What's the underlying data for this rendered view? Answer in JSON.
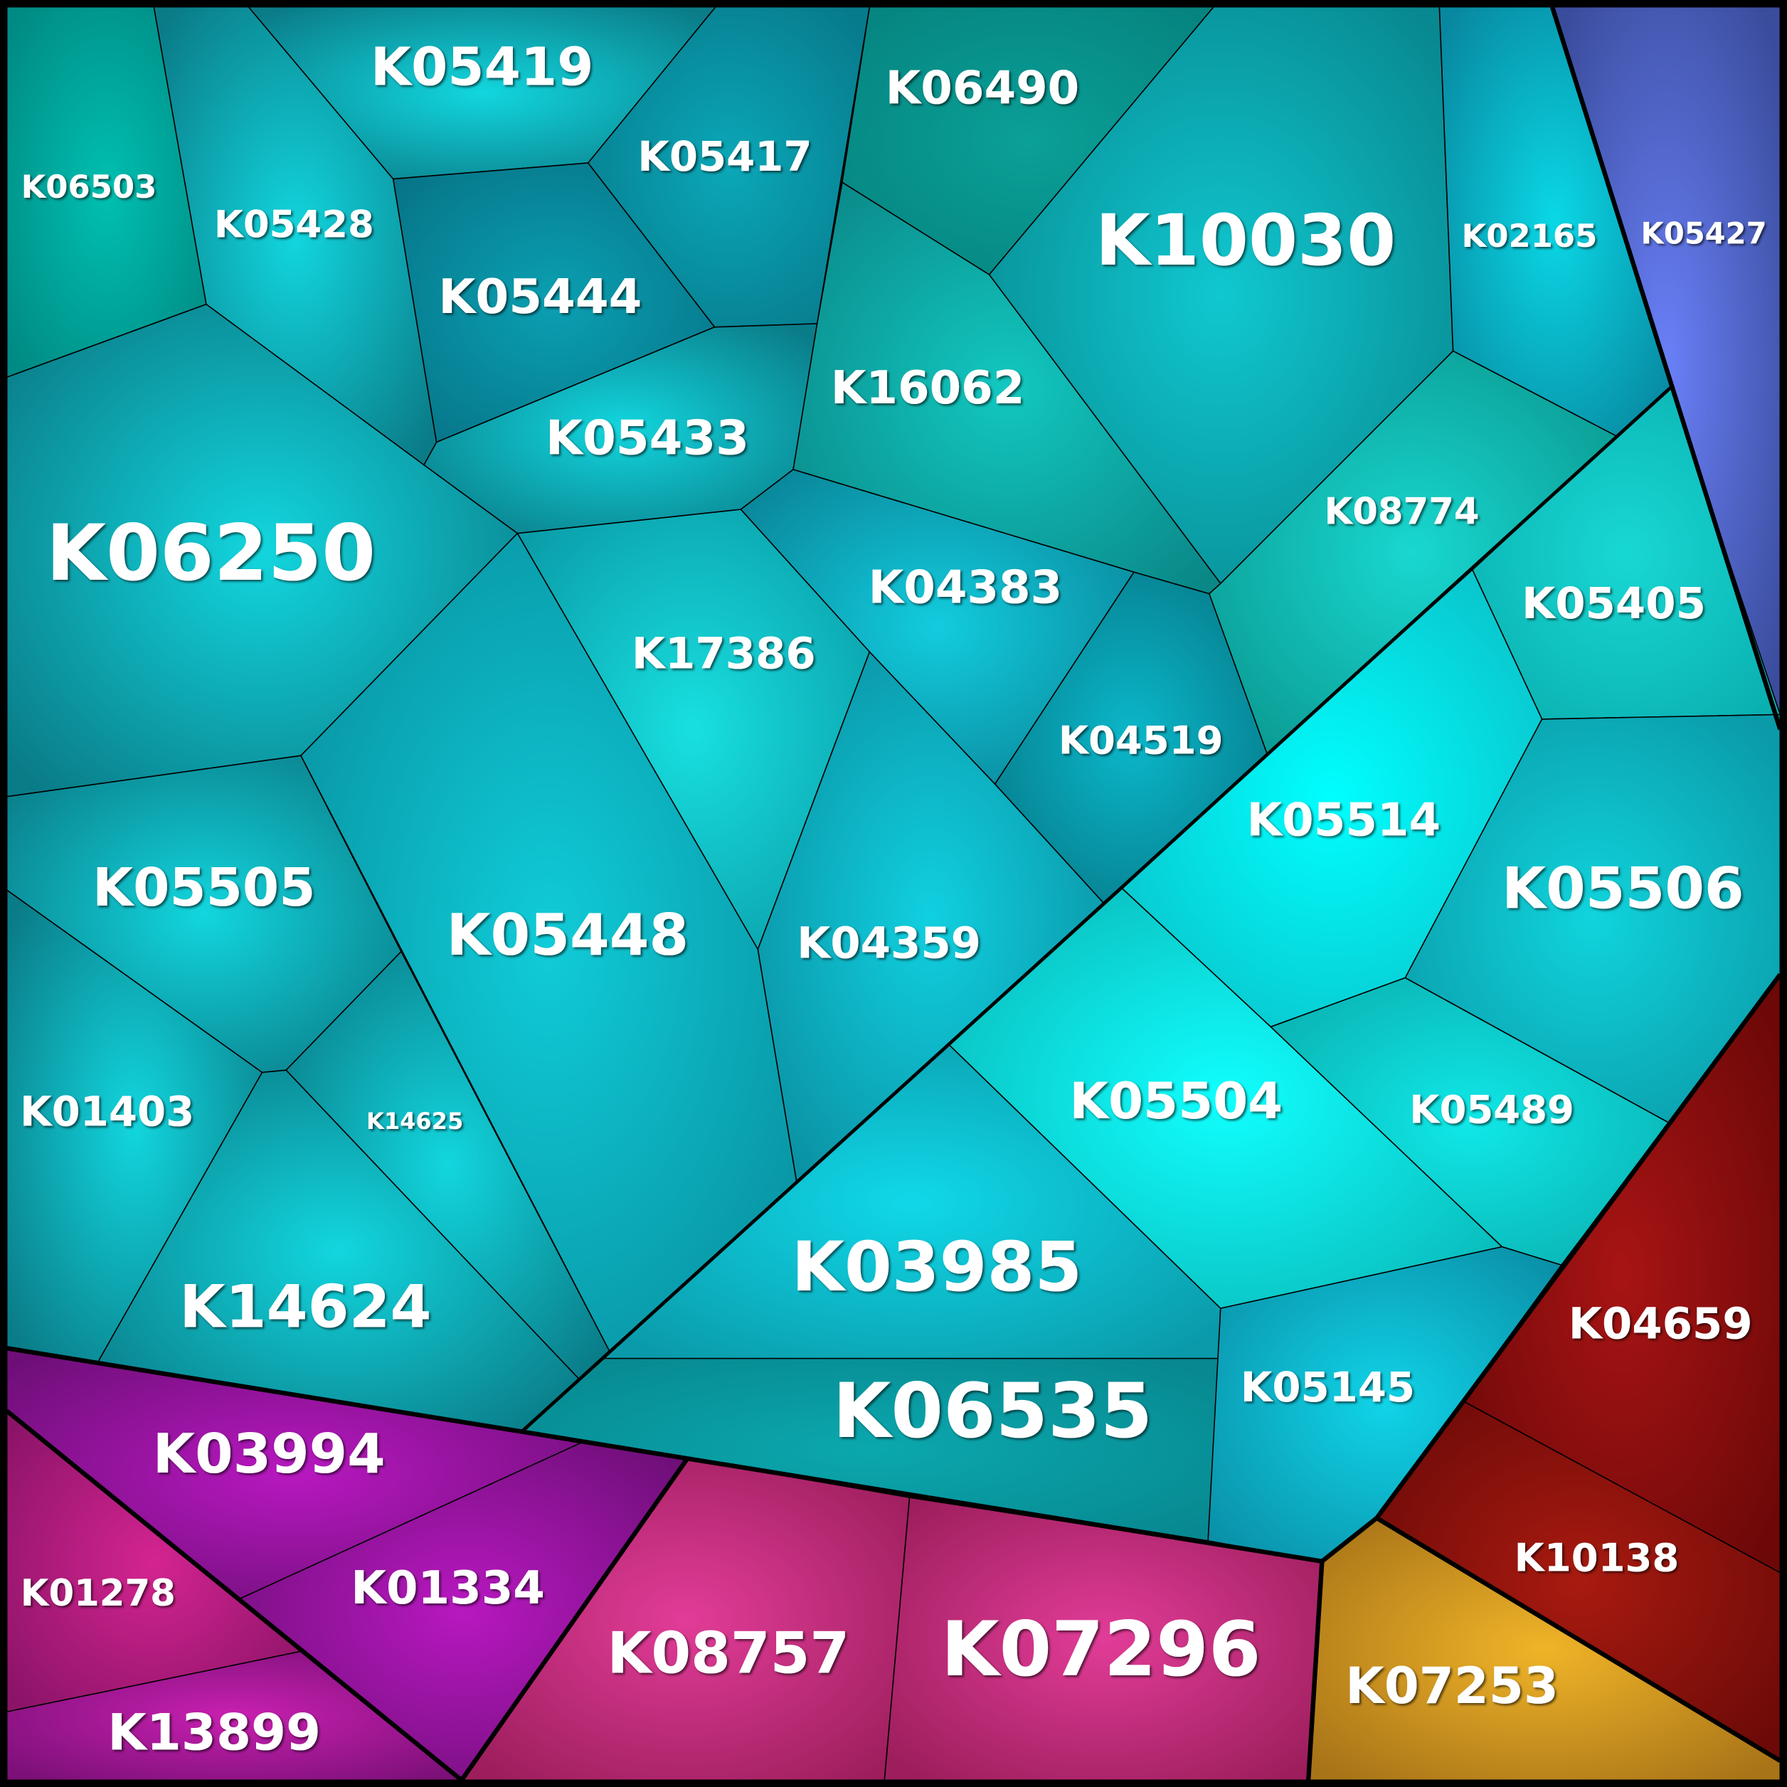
{
  "cells": [
    "K06503",
    "K05428",
    "K05419",
    "K05417",
    "K05444",
    "K05433",
    "K06490",
    "K10030",
    "K02165",
    "K05427",
    "K16062",
    "K06250",
    "K08774",
    "K05405",
    "K04383",
    "K04519",
    "K17386",
    "K05514",
    "K05506",
    "K05505",
    "K05448",
    "K04359",
    "K05504",
    "K05489",
    "K01403",
    "K14625",
    "K14624",
    "K03985",
    "K06535",
    "K05145",
    "K04659",
    "K10138",
    "K07253",
    "K07296",
    "K08757",
    "K03994",
    "K01334",
    "K01278",
    "K13899"
  ]
}
